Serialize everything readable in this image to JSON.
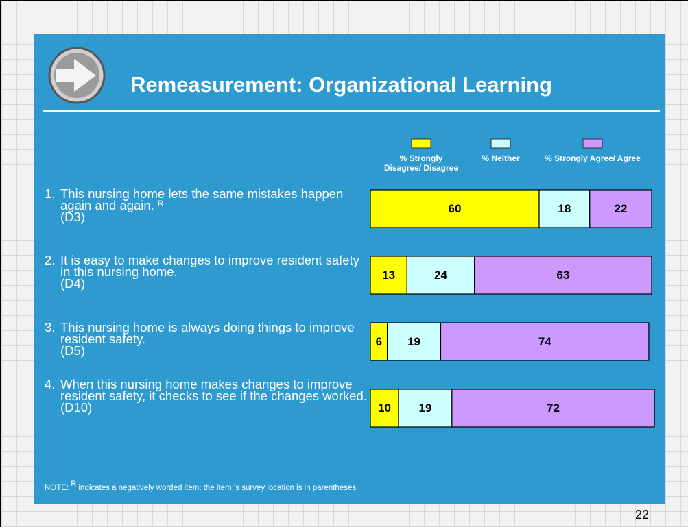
{
  "title": "Remeasurement: Organizational Learning",
  "chart_data": {
    "type": "stacked-bar-horizontal",
    "item_numbers": [
      "1.",
      "2.",
      "3.",
      "4."
    ],
    "categories": [
      "This nursing home lets the same mistakes happen again and again.",
      "It is easy to make changes to improve resident safety in this nursing home.",
      "This nursing home is always doing things to improve resident safety.",
      "When this nursing home makes changes to improve resident safety, it checks to see if the changes worked."
    ],
    "category_marks": [
      "R",
      null,
      null,
      null
    ],
    "category_codes": [
      "(D3)",
      "(D4)",
      "(D5)",
      "(D10)"
    ],
    "xlim": [
      0,
      100
    ],
    "series": [
      {
        "name": "% Strongly Disagree/ Disagree",
        "color": "#ffff00",
        "values": [
          60,
          13,
          6,
          10
        ]
      },
      {
        "name": "% Neither",
        "color": "#ccffff",
        "values": [
          18,
          24,
          19,
          19
        ]
      },
      {
        "name": "% Strongly Agree/ Agree",
        "color": "#cc99ff",
        "values": [
          22,
          63,
          74,
          72
        ]
      }
    ]
  },
  "note": {
    "prefix": "NOTE:",
    "mark": "R",
    "text": "indicates a negatively worded item; the item ‘s survey location is in parentheses."
  },
  "page_number": "22"
}
